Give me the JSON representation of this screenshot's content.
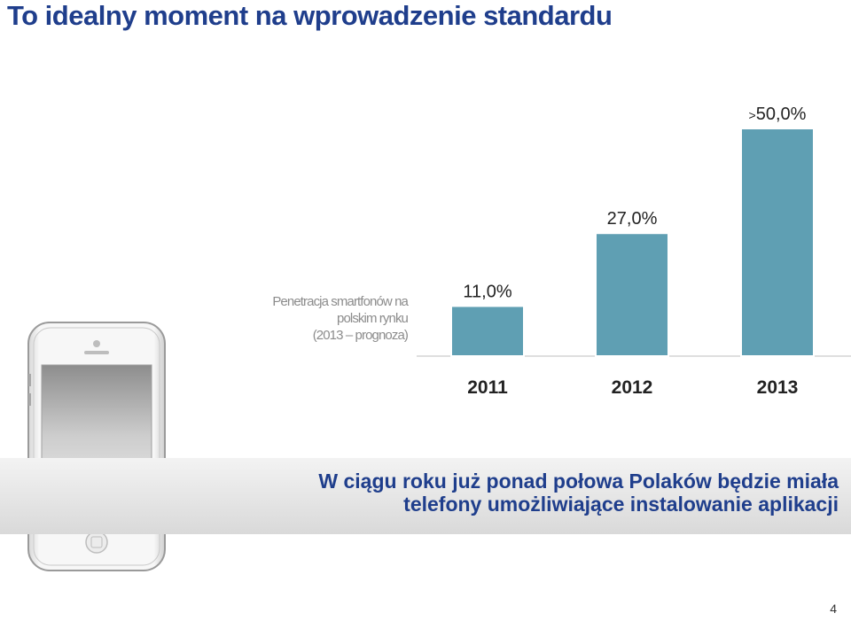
{
  "title": "To idealny moment na wprowadzenie standardu",
  "chart_description": [
    "Penetracja smartfonów na",
    "polskim rynku",
    "(2013 – prognoza)"
  ],
  "headline": [
    "W ciągu roku już ponad połowa Polaków będzie miała",
    "telefony umożliwiające instalowanie aplikacji"
  ],
  "page_number": "4",
  "colors": {
    "title": "#1f3e8c",
    "bar": "#5f9fb3",
    "desc": "#8c8c8c"
  },
  "chart_data": {
    "type": "bar",
    "categories": [
      "2011",
      "2012",
      "2013"
    ],
    "values": [
      11.0,
      27.0,
      50.0
    ],
    "data_labels_prefix": [
      "",
      "",
      ">"
    ],
    "data_labels": [
      "11,0%",
      "27,0%",
      "50,0%"
    ],
    "title": "",
    "xlabel": "",
    "ylabel": "",
    "grid": false,
    "legend": "none"
  }
}
